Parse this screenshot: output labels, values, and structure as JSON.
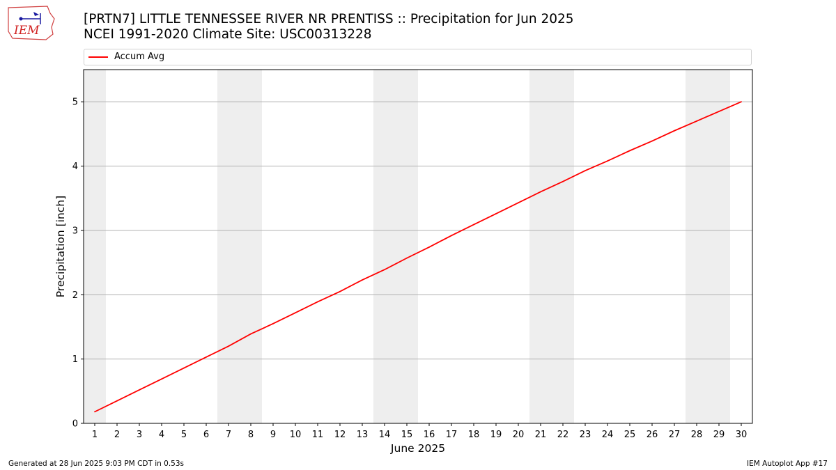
{
  "header": {
    "title_line1": "[PRTN7] LITTLE TENNESSEE RIVER NR PRENTISS :: Precipitation for Jun 2025",
    "title_line2": "NCEI 1991-2020 Climate Site: USC00313228",
    "logo_text": "IEM"
  },
  "footer": {
    "generated": "Generated at 28 Jun 2025 9:03 PM CDT in 0.53s",
    "app": "IEM Autoplot App #17"
  },
  "colors": {
    "line": "#ff0000",
    "weekend_band": "#eeeeee",
    "grid": "#b0b0b0"
  },
  "chart_data": {
    "type": "line",
    "xlabel": "June 2025",
    "ylabel": "Precipitation [inch]",
    "ylim": [
      0,
      5.5
    ],
    "yticks": [
      0,
      1,
      2,
      3,
      4,
      5
    ],
    "xlim": [
      0.5,
      30.5
    ],
    "grid": "y",
    "legend_position": "top",
    "weekend_bands": [
      [
        0.5,
        1.5
      ],
      [
        6.5,
        8.5
      ],
      [
        13.5,
        15.5
      ],
      [
        20.5,
        22.5
      ],
      [
        27.5,
        29.5
      ]
    ],
    "x": [
      1,
      2,
      3,
      4,
      5,
      6,
      7,
      8,
      9,
      10,
      11,
      12,
      13,
      14,
      15,
      16,
      17,
      18,
      19,
      20,
      21,
      22,
      23,
      24,
      25,
      26,
      27,
      28,
      29,
      30
    ],
    "series": [
      {
        "name": "Accum Avg",
        "color": "#ff0000",
        "values": [
          0.18,
          0.35,
          0.52,
          0.69,
          0.86,
          1.03,
          1.2,
          1.39,
          1.55,
          1.72,
          1.89,
          2.05,
          2.23,
          2.39,
          2.57,
          2.74,
          2.92,
          3.09,
          3.26,
          3.43,
          3.6,
          3.76,
          3.93,
          4.08,
          4.24,
          4.39,
          4.55,
          4.7,
          4.85,
          5.0
        ]
      }
    ]
  }
}
